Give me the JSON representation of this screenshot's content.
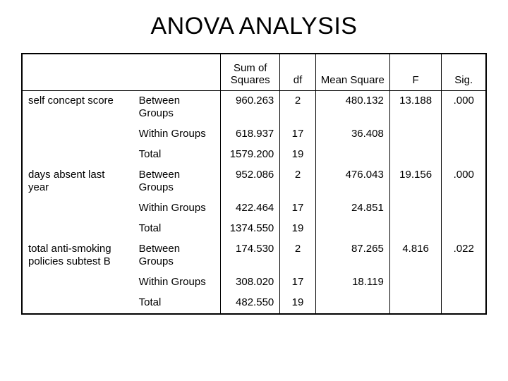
{
  "title": "ANOVA ANALYSIS",
  "table": {
    "columns": [
      "",
      "",
      "Sum of\nSquares",
      "df",
      "Mean Square",
      "F",
      "Sig."
    ],
    "col_align": [
      "left",
      "left",
      "right",
      "center",
      "right",
      "center",
      "center"
    ],
    "groups": [
      {
        "dv": "self concept score",
        "rows": [
          {
            "src": "Between Groups",
            "ss": "960.263",
            "df": "2",
            "ms": "480.132",
            "f": "13.188",
            "sig": ".000"
          },
          {
            "src": "Within Groups",
            "ss": "618.937",
            "df": "17",
            "ms": "36.408",
            "f": "",
            "sig": ""
          },
          {
            "src": "Total",
            "ss": "1579.200",
            "df": "19",
            "ms": "",
            "f": "",
            "sig": ""
          }
        ]
      },
      {
        "dv": "days absent last year",
        "rows": [
          {
            "src": "Between Groups",
            "ss": "952.086",
            "df": "2",
            "ms": "476.043",
            "f": "19.156",
            "sig": ".000"
          },
          {
            "src": "Within Groups",
            "ss": "422.464",
            "df": "17",
            "ms": "24.851",
            "f": "",
            "sig": ""
          },
          {
            "src": "Total",
            "ss": "1374.550",
            "df": "19",
            "ms": "",
            "f": "",
            "sig": ""
          }
        ]
      },
      {
        "dv": "total anti-smoking policies subtest B",
        "rows": [
          {
            "src": "Between Groups",
            "ss": "174.530",
            "df": "2",
            "ms": "87.265",
            "f": "4.816",
            "sig": ".022"
          },
          {
            "src": "Within Groups",
            "ss": "308.020",
            "df": "17",
            "ms": "18.119",
            "f": "",
            "sig": ""
          },
          {
            "src": "Total",
            "ss": "482.550",
            "df": "19",
            "ms": "",
            "f": "",
            "sig": ""
          }
        ]
      }
    ]
  },
  "style": {
    "bg": "#ffffff",
    "fg": "#000000",
    "title_fontsize": 34,
    "cell_fontsize": 15,
    "border_color": "#000000"
  }
}
